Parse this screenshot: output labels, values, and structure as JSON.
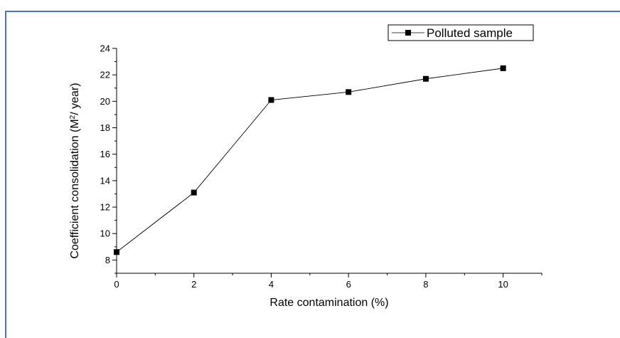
{
  "chart_data": {
    "type": "line",
    "xlabel": "Rate contamination (%)",
    "ylabel_main": "Coefficient consolidation (M",
    "ylabel_sup": "2",
    "ylabel_tail": "/ year)",
    "xlim": [
      0,
      11
    ],
    "ylim": [
      7,
      24
    ],
    "xticks": [
      0,
      2,
      4,
      6,
      8,
      10
    ],
    "yticks": [
      8,
      10,
      12,
      14,
      16,
      18,
      20,
      22,
      24
    ],
    "legend_position": "top-right",
    "colors": {
      "frame": "#4a74c9",
      "series": "#000000"
    },
    "series": [
      {
        "name": "Polluted sample",
        "marker": "square",
        "x": [
          0,
          2,
          4,
          6,
          8,
          10
        ],
        "y": [
          8.6,
          13.1,
          20.1,
          20.7,
          21.7,
          22.5
        ]
      }
    ]
  }
}
